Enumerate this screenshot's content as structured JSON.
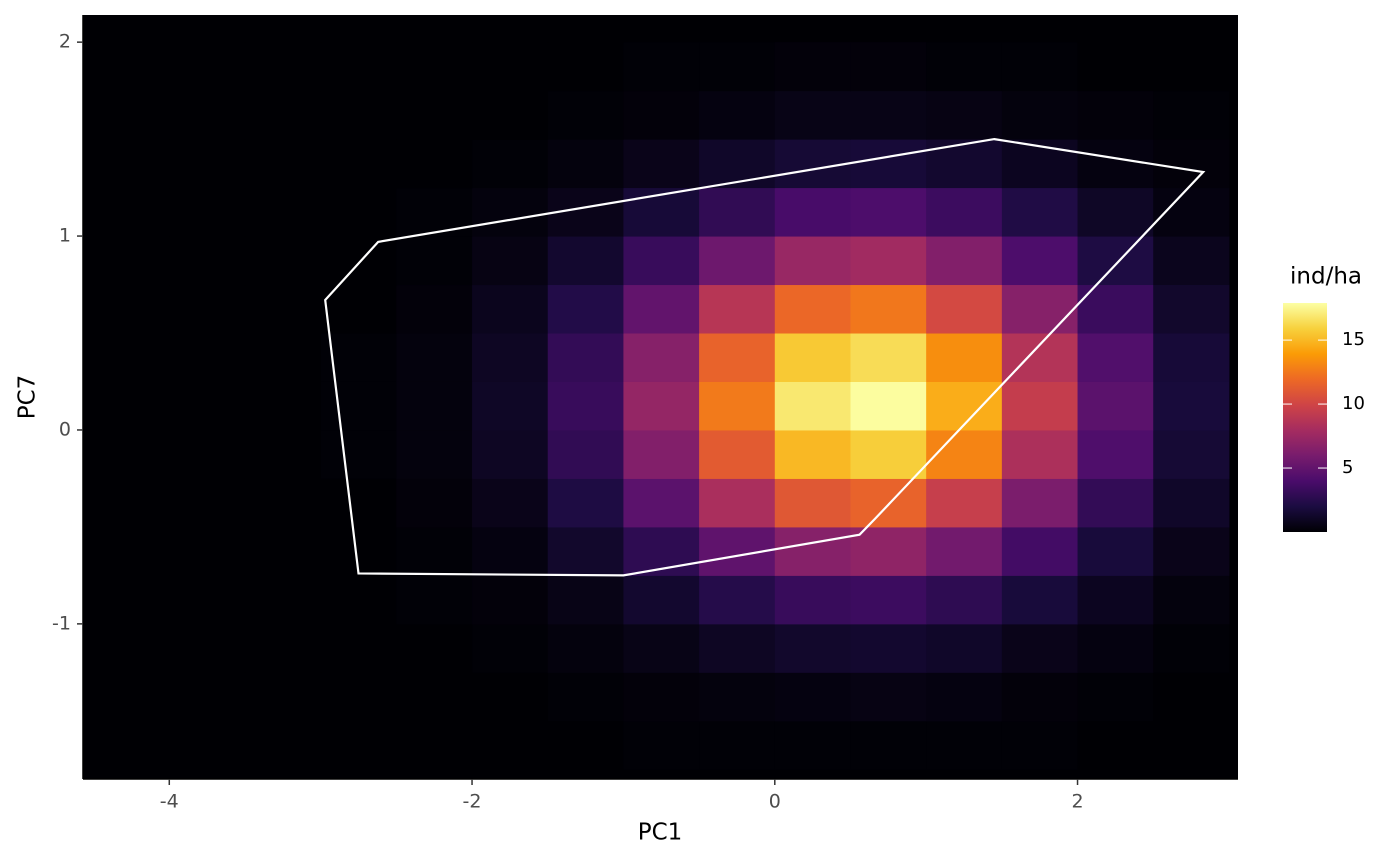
{
  "chart_data": {
    "type": "heatmap",
    "x_label": "PC1",
    "y_label": "PC7",
    "xlim": [
      -4.57,
      3.06
    ],
    "ylim": [
      -1.8,
      2.14
    ],
    "xticks": [
      -4,
      -2,
      0,
      2
    ],
    "yticks": [
      -1,
      0,
      1,
      2
    ],
    "x": [
      -4.25,
      -3.75,
      -3.25,
      -2.75,
      -2.25,
      -1.75,
      -1.25,
      -0.75,
      -0.25,
      0.25,
      0.75,
      1.25,
      1.75,
      2.25,
      2.75
    ],
    "y": [
      -1.625,
      -1.375,
      -1.125,
      -0.875,
      -0.625,
      -0.375,
      -0.125,
      0.125,
      0.375,
      0.625,
      0.875,
      1.125,
      1.375,
      1.625,
      1.875
    ],
    "z": [
      [
        0,
        0,
        0,
        0,
        0,
        0,
        0,
        0.1,
        0.1,
        0.1,
        0.1,
        0.1,
        0.1,
        0,
        0
      ],
      [
        0,
        0,
        0,
        0,
        0,
        0,
        0.1,
        0.2,
        0.3,
        0.4,
        0.5,
        0.4,
        0.2,
        0.1,
        0
      ],
      [
        0,
        0,
        0,
        0,
        0,
        0.1,
        0.3,
        0.6,
        1,
        1.3,
        1.4,
        1.2,
        0.7,
        0.4,
        0.1
      ],
      [
        0,
        0,
        0,
        0,
        0.1,
        0.2,
        0.6,
        1.4,
        2.4,
        3.2,
        3.4,
        2.8,
        1.8,
        0.9,
        0.3
      ],
      [
        0,
        0,
        0,
        0,
        0.1,
        0.4,
        1.3,
        2.8,
        4.9,
        6.6,
        7,
        5.7,
        3.7,
        1.8,
        0.7
      ],
      [
        0,
        0,
        0,
        0,
        0.2,
        0.7,
        2.1,
        4.7,
        8.2,
        11,
        11.6,
        9.5,
        6.1,
        3,
        1.2
      ],
      [
        0,
        0,
        0,
        0.1,
        0.3,
        1,
        2.9,
        6.4,
        11.2,
        15,
        15.8,
        13,
        8.3,
        4.2,
        1.6
      ],
      [
        0,
        0,
        0,
        0.1,
        0.3,
        1.1,
        3.2,
        7.2,
        12.6,
        16.9,
        17.8,
        14.6,
        9.4,
        4.7,
        1.8
      ],
      [
        0,
        0,
        0,
        0.1,
        0.3,
        1,
        3,
        6.6,
        11.6,
        15.6,
        16.4,
        13.4,
        8.6,
        4.3,
        1.7
      ],
      [
        0,
        0,
        0,
        0,
        0.2,
        0.8,
        2.3,
        5,
        8.8,
        11.8,
        12.5,
        10.2,
        6.6,
        3.3,
        1.3
      ],
      [
        0,
        0,
        0,
        0,
        0.1,
        0.5,
        1.4,
        3.2,
        5.5,
        7.4,
        7.8,
        6.4,
        4.1,
        2.1,
        0.8
      ],
      [
        0,
        0,
        0,
        0,
        0.1,
        0.3,
        0.7,
        1.7,
        2.9,
        3.9,
        4.1,
        3.4,
        2.2,
        1.1,
        0.4
      ],
      [
        0,
        0,
        0,
        0,
        0,
        0.1,
        0.3,
        0.7,
        1.2,
        1.6,
        1.7,
        1.4,
        0.9,
        0.4,
        0.2
      ],
      [
        0,
        0,
        0,
        0,
        0,
        0,
        0.1,
        0.2,
        0.4,
        0.6,
        0.6,
        0.5,
        0.3,
        0.2,
        0.1
      ],
      [
        0,
        0,
        0,
        0,
        0,
        0,
        0,
        0.1,
        0.1,
        0.2,
        0.2,
        0.1,
        0.1,
        0,
        0
      ]
    ],
    "colors": [
      "#000004",
      "#1b0c41",
      "#4a0c6b",
      "#781c6d",
      "#a52c60",
      "#cf4446",
      "#ed6925",
      "#fb9b06",
      "#f7d13d",
      "#fcffa4"
    ],
    "outline": {
      "color": "#ffffff",
      "x": [
        1.45,
        2.83,
        0.66,
        0.56,
        -1.0,
        -2.75,
        -2.97,
        -2.62
      ],
      "y": [
        1.5,
        1.33,
        -0.46,
        -0.54,
        -0.75,
        -0.74,
        0.67,
        0.97
      ]
    },
    "colorbar": {
      "title": "ind/ha",
      "lim": [
        0,
        17.9
      ],
      "ticks": [
        5,
        10,
        15
      ]
    }
  }
}
